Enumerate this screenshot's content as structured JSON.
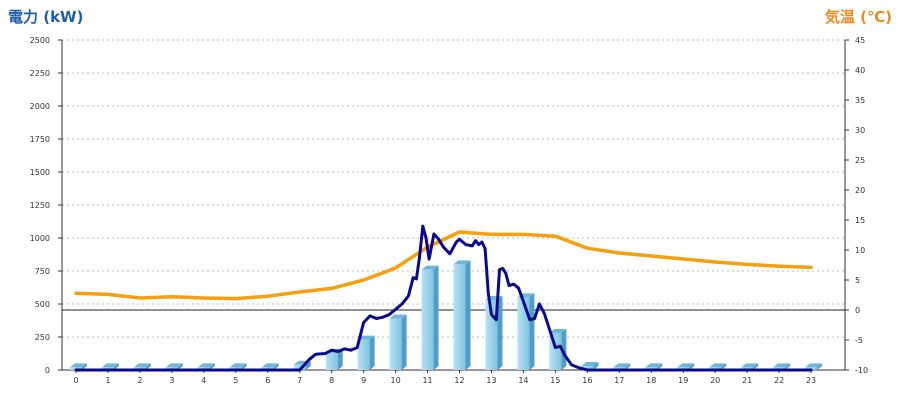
{
  "chart_data": {
    "type": "bar",
    "left_axis": {
      "label": "電力 (kW)",
      "color": "#1f5fa8",
      "ylim": [
        0,
        2500
      ],
      "ticks": [
        0,
        250,
        500,
        750,
        1000,
        1250,
        1500,
        1750,
        2000,
        2250,
        2500
      ]
    },
    "right_axis": {
      "label": "気温 (℃)",
      "color": "#f08a1c",
      "ylim": [
        -10,
        45
      ],
      "ticks": [
        -10,
        -5,
        0,
        5,
        10,
        15,
        20,
        25,
        30,
        35,
        40,
        45
      ]
    },
    "categories": [
      "0",
      "1",
      "2",
      "3",
      "4",
      "5",
      "6",
      "7",
      "8",
      "9",
      "10",
      "11",
      "12",
      "13",
      "14",
      "15",
      "16",
      "17",
      "18",
      "19",
      "20",
      "21",
      "22",
      "23"
    ],
    "grid": true,
    "zero_line": true,
    "series": [
      {
        "kind": "bar",
        "axis": "left",
        "color": "#8ecde8",
        "values": [
          20,
          20,
          20,
          20,
          20,
          20,
          20,
          40,
          130,
          230,
          390,
          760,
          800,
          530,
          550,
          280,
          30,
          20,
          20,
          20,
          20,
          20,
          20,
          20
        ]
      },
      {
        "kind": "line",
        "axis": "left",
        "color": "#0a0a8c",
        "points": [
          [
            0,
            0
          ],
          [
            1,
            0
          ],
          [
            2,
            0
          ],
          [
            3,
            0
          ],
          [
            4,
            0
          ],
          [
            5,
            0
          ],
          [
            6,
            0
          ],
          [
            7,
            0
          ],
          [
            7.3,
            80
          ],
          [
            7.5,
            120
          ],
          [
            7.8,
            125
          ],
          [
            8,
            150
          ],
          [
            8.2,
            140
          ],
          [
            8.4,
            160
          ],
          [
            8.6,
            150
          ],
          [
            8.8,
            170
          ],
          [
            9,
            360
          ],
          [
            9.2,
            410
          ],
          [
            9.4,
            390
          ],
          [
            9.6,
            400
          ],
          [
            9.8,
            420
          ],
          [
            10,
            460
          ],
          [
            10.2,
            500
          ],
          [
            10.4,
            560
          ],
          [
            10.55,
            700
          ],
          [
            10.65,
            690
          ],
          [
            10.75,
            860
          ],
          [
            10.85,
            1090
          ],
          [
            10.95,
            1000
          ],
          [
            11.05,
            840
          ],
          [
            11.2,
            1030
          ],
          [
            11.35,
            990
          ],
          [
            11.5,
            930
          ],
          [
            11.7,
            880
          ],
          [
            11.9,
            970
          ],
          [
            12,
            990
          ],
          [
            12.2,
            950
          ],
          [
            12.4,
            940
          ],
          [
            12.5,
            980
          ],
          [
            12.6,
            950
          ],
          [
            12.7,
            970
          ],
          [
            12.8,
            920
          ],
          [
            12.9,
            580
          ],
          [
            13,
            420
          ],
          [
            13.15,
            380
          ],
          [
            13.25,
            760
          ],
          [
            13.35,
            770
          ],
          [
            13.45,
            730
          ],
          [
            13.55,
            640
          ],
          [
            13.7,
            650
          ],
          [
            13.85,
            620
          ],
          [
            14,
            520
          ],
          [
            14.2,
            380
          ],
          [
            14.35,
            390
          ],
          [
            14.5,
            500
          ],
          [
            14.65,
            430
          ],
          [
            14.8,
            320
          ],
          [
            15,
            170
          ],
          [
            15.15,
            180
          ],
          [
            15.3,
            110
          ],
          [
            15.5,
            40
          ],
          [
            15.7,
            20
          ],
          [
            16,
            0
          ],
          [
            17,
            0
          ],
          [
            18,
            0
          ],
          [
            19,
            0
          ],
          [
            20,
            0
          ],
          [
            21,
            0
          ],
          [
            22,
            0
          ],
          [
            23,
            0
          ]
        ]
      },
      {
        "kind": "line",
        "axis": "right",
        "color": "#f5a00c",
        "values": [
          2.8,
          2.6,
          2.0,
          2.2,
          2.0,
          1.9,
          2.3,
          3.0,
          3.6,
          5.0,
          7.0,
          10.5,
          13.0,
          12.6,
          12.6,
          12.3,
          10.3,
          9.5,
          9.0,
          8.5,
          8.0,
          7.6,
          7.3,
          7.1
        ]
      }
    ]
  }
}
